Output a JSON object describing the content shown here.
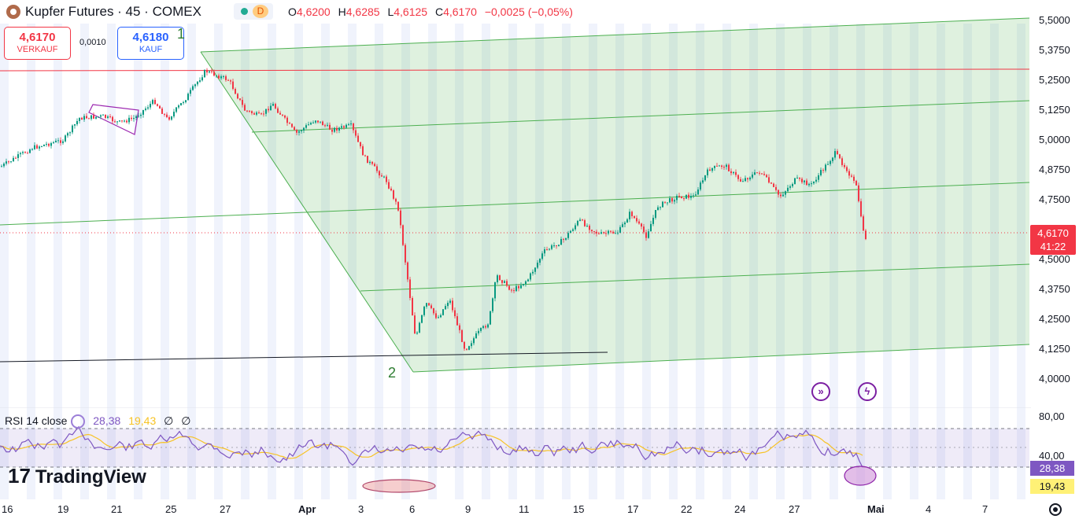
{
  "header": {
    "title": "Kupfer Futures · 45 · COMEX",
    "badge_letter": "D",
    "ohlc": [
      {
        "k": "O",
        "v": "4,6200"
      },
      {
        "k": "H",
        "v": "4,6285"
      },
      {
        "k": "L",
        "v": "4,6125"
      },
      {
        "k": "C",
        "v": "4,6170"
      }
    ],
    "change": "−0,0025 (−0,05%)"
  },
  "trade": {
    "sell_price": "4,6170",
    "sell_label": "VERKAUF",
    "spread": "0,0010",
    "buy_price": "4,6180",
    "buy_label": "KAUF"
  },
  "price_axis": [
    "5,5000",
    "5,3750",
    "5,2500",
    "5,1250",
    "5,0000",
    "4,8750",
    "4,7500",
    "4,5000",
    "4,3750",
    "4,2500",
    "4,1250",
    "4,0000"
  ],
  "current_price": {
    "value": "4,6170",
    "countdown": "41:22"
  },
  "wave_labels": {
    "one": "1",
    "two": "2"
  },
  "rsi": {
    "label": "RSI 14 close",
    "value": "28,38",
    "ma_value": "19,43",
    "empty1": "∅",
    "empty2": "∅",
    "levels": [
      "80,00",
      "40,00"
    ],
    "tag_value": "28,38",
    "tag_ma": "19,43"
  },
  "time_axis": [
    "16",
    "19",
    "21",
    "25",
    "27",
    "Apr",
    "3",
    "6",
    "9",
    "11",
    "15",
    "17",
    "22",
    "24",
    "27",
    "Mai",
    "4",
    "7"
  ],
  "branding": "TradingView",
  "colors": {
    "up": "#089981",
    "down": "#f23645",
    "channel": "#4caf50",
    "rsi": "#7e57c2",
    "rsi_ma": "#f7c325"
  },
  "icons": [
    "symbol-logo-icon",
    "market-status-icon",
    "replay-icon",
    "lightning-icon",
    "rsi-source-icon",
    "settings-icon"
  ]
}
